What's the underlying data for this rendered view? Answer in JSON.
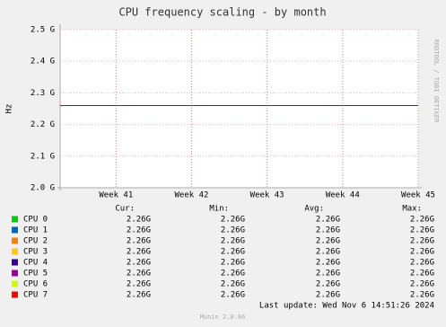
{
  "chart_data": {
    "type": "line",
    "title": "CPU frequency scaling - by month",
    "ylabel": "Hz",
    "xlim": [
      40.26,
      45
    ],
    "xticks": [
      {
        "value": 41,
        "label": "Week 41"
      },
      {
        "value": 42,
        "label": "Week 42"
      },
      {
        "value": 43,
        "label": "Week 43"
      },
      {
        "value": 44,
        "label": "Week 44"
      },
      {
        "value": 45,
        "label": "Week 45"
      }
    ],
    "ylim": [
      2000000000,
      2500000000
    ],
    "yticks": [
      {
        "value": 2000000000,
        "label": "2.0 G"
      },
      {
        "value": 2100000000,
        "label": "2.1 G"
      },
      {
        "value": 2200000000,
        "label": "2.2 G"
      },
      {
        "value": 2300000000,
        "label": "2.3 G"
      },
      {
        "value": 2400000000,
        "label": "2.4 G"
      },
      {
        "value": 2500000000,
        "label": "2.5 G"
      }
    ],
    "grid": true,
    "x": [
      40.26,
      45
    ],
    "series": [
      {
        "name": "CPU 0",
        "color": "#00cc00",
        "values": [
          2260000000,
          2260000000
        ],
        "stats": [
          "2.26G",
          "2.26G",
          "2.26G",
          "2.26G"
        ]
      },
      {
        "name": "CPU 1",
        "color": "#0066b3",
        "values": [
          2260000000,
          2260000000
        ],
        "stats": [
          "2.26G",
          "2.26G",
          "2.26G",
          "2.26G"
        ]
      },
      {
        "name": "CPU 2",
        "color": "#ff8000",
        "values": [
          2260000000,
          2260000000
        ],
        "stats": [
          "2.26G",
          "2.26G",
          "2.26G",
          "2.26G"
        ]
      },
      {
        "name": "CPU 3",
        "color": "#ffcc00",
        "values": [
          2260000000,
          2260000000
        ],
        "stats": [
          "2.26G",
          "2.26G",
          "2.26G",
          "2.26G"
        ]
      },
      {
        "name": "CPU 4",
        "color": "#330099",
        "values": [
          2260000000,
          2260000000
        ],
        "stats": [
          "2.26G",
          "2.26G",
          "2.26G",
          "2.26G"
        ]
      },
      {
        "name": "CPU 5",
        "color": "#990099",
        "values": [
          2260000000,
          2260000000
        ],
        "stats": [
          "2.26G",
          "2.26G",
          "2.26G",
          "2.26G"
        ]
      },
      {
        "name": "CPU 6",
        "color": "#ccff00",
        "values": [
          2260000000,
          2260000000
        ],
        "stats": [
          "2.26G",
          "2.26G",
          "2.26G",
          "2.26G"
        ]
      },
      {
        "name": "CPU 7",
        "color": "#ff0000",
        "values": [
          2260000000,
          2260000000
        ],
        "stats": [
          "2.26G",
          "2.26G",
          "2.26G",
          "2.26G"
        ]
      }
    ],
    "stat_headers": [
      "Cur:",
      "Min:",
      "Avg:",
      "Max:"
    ],
    "last_update": "Last update: Wed Nov  6 14:51:26 2024",
    "side_text": "RRDTOOL / TOBI OETIKER",
    "footer": "Munin 2.0.66"
  }
}
